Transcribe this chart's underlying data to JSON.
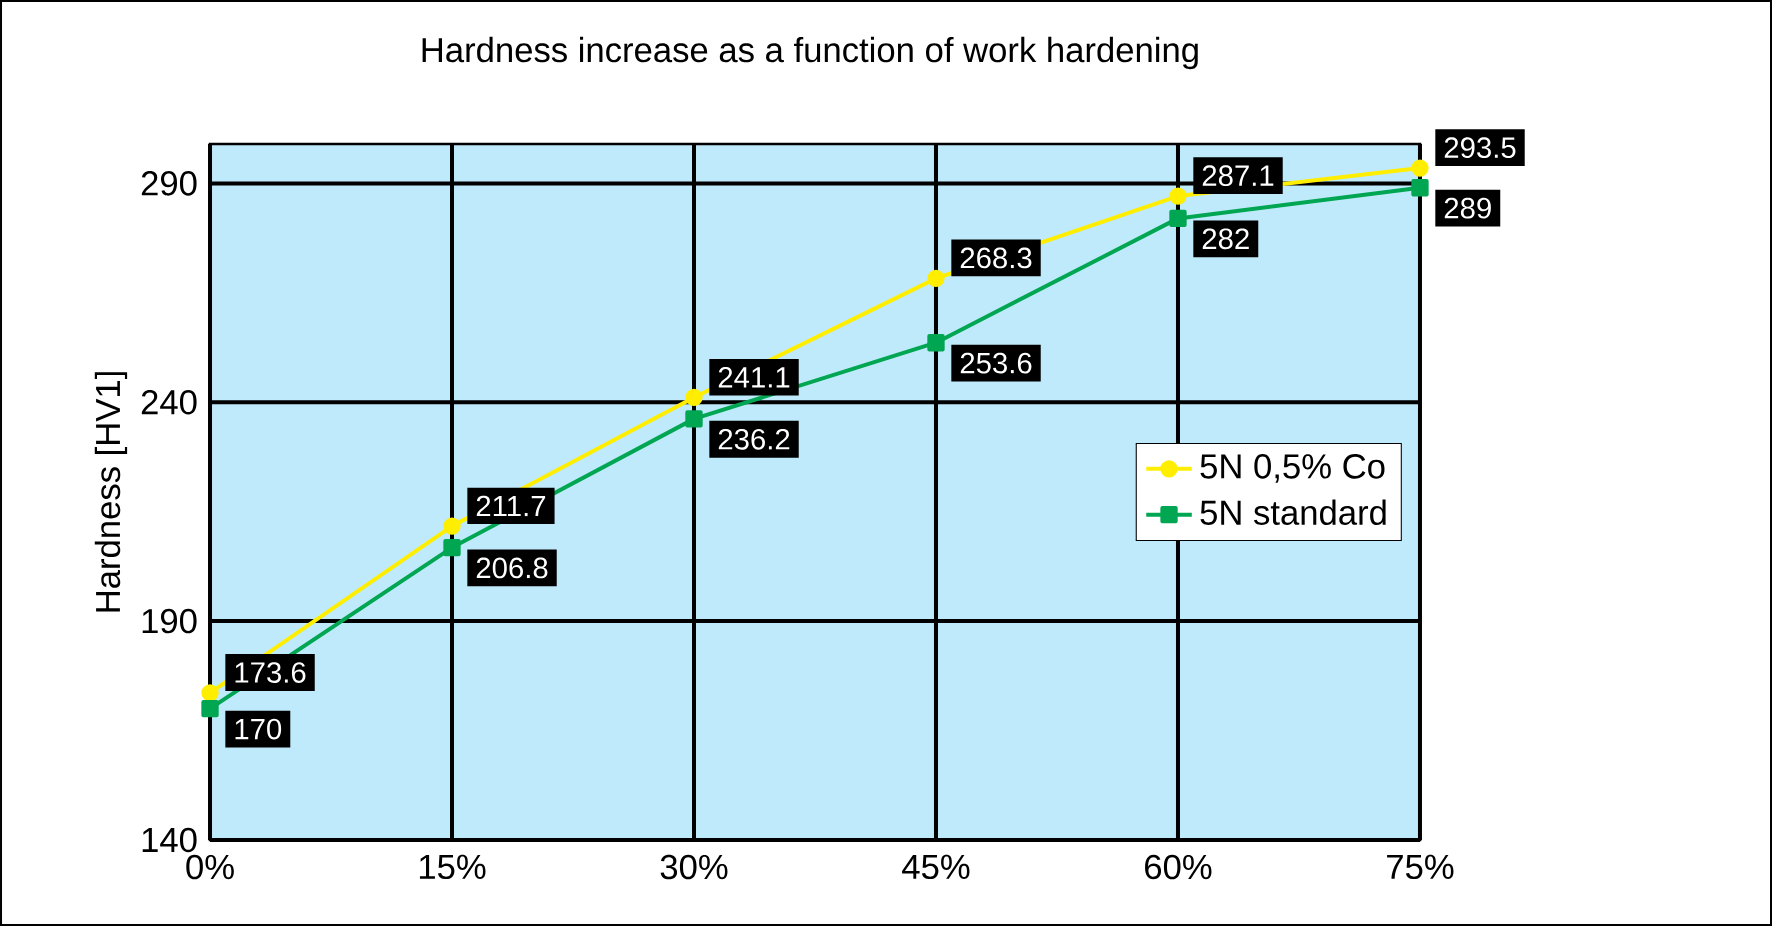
{
  "chart_data": {
    "type": "line",
    "title": "Hardness increase as a function of work hardening",
    "ylabel": "Hardness [HV1]",
    "categories": [
      "0%",
      "15%",
      "30%",
      "45%",
      "60%",
      "75%"
    ],
    "series": [
      {
        "name": "5N 0,5% Co",
        "color": "#ffee00",
        "marker": "circle",
        "values": [
          173.6,
          211.7,
          241.1,
          268.3,
          287.1,
          293.5
        ]
      },
      {
        "name": "5N standard",
        "color": "#00a651",
        "marker": "square",
        "values": [
          170,
          206.8,
          236.2,
          253.6,
          282,
          289
        ]
      }
    ],
    "ylim": [
      140,
      299
    ],
    "yticks": [
      140,
      190,
      240,
      290
    ],
    "grid": true,
    "legend": "right",
    "data_labels": true
  }
}
